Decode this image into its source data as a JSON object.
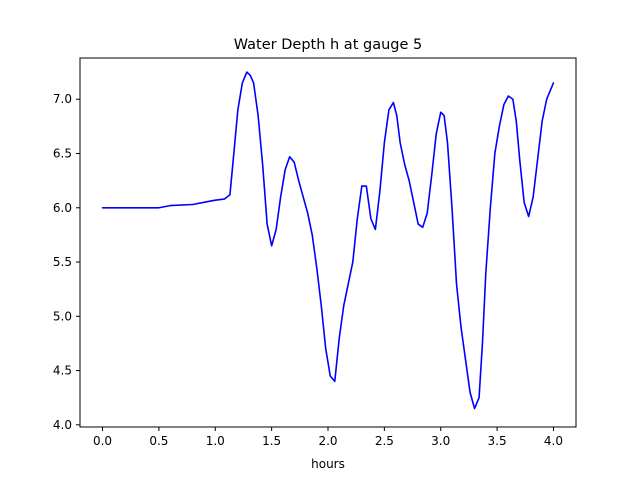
{
  "chart_data": {
    "type": "line",
    "title": "Water Depth h at gauge 5",
    "xlabel": "hours",
    "ylabel": "",
    "xlim": [
      -0.2,
      4.2
    ],
    "ylim": [
      3.98,
      7.38
    ],
    "xticks": [
      0.0,
      0.5,
      1.0,
      1.5,
      2.0,
      2.5,
      3.0,
      3.5,
      4.0
    ],
    "xtick_labels": [
      "0.0",
      "0.5",
      "1.0",
      "1.5",
      "2.0",
      "2.5",
      "3.0",
      "3.5",
      "4.0"
    ],
    "yticks": [
      4.0,
      4.5,
      5.0,
      5.5,
      6.0,
      6.5,
      7.0
    ],
    "ytick_labels": [
      "4.0",
      "4.5",
      "5.0",
      "5.5",
      "6.0",
      "6.5",
      "7.0"
    ],
    "grid": false,
    "legend": "none",
    "series": [
      {
        "color": "#0000ff",
        "x": [
          0.0,
          0.2,
          0.4,
          0.5,
          0.6,
          0.8,
          0.9,
          1.0,
          1.08,
          1.13,
          1.16,
          1.2,
          1.24,
          1.28,
          1.31,
          1.34,
          1.38,
          1.42,
          1.46,
          1.5,
          1.54,
          1.58,
          1.62,
          1.66,
          1.7,
          1.74,
          1.78,
          1.82,
          1.86,
          1.9,
          1.94,
          1.98,
          2.02,
          2.06,
          2.1,
          2.14,
          2.18,
          2.22,
          2.26,
          2.3,
          2.34,
          2.38,
          2.42,
          2.46,
          2.5,
          2.54,
          2.58,
          2.61,
          2.64,
          2.68,
          2.72,
          2.76,
          2.8,
          2.84,
          2.88,
          2.92,
          2.96,
          3.0,
          3.03,
          3.06,
          3.1,
          3.14,
          3.18,
          3.22,
          3.26,
          3.3,
          3.34,
          3.37,
          3.4,
          3.44,
          3.48,
          3.52,
          3.56,
          3.6,
          3.64,
          3.67,
          3.7,
          3.74,
          3.78,
          3.82,
          3.86,
          3.9,
          3.94,
          4.0
        ],
        "y": [
          6.0,
          6.0,
          6.0,
          6.0,
          6.02,
          6.03,
          6.05,
          6.07,
          6.08,
          6.12,
          6.45,
          6.9,
          7.15,
          7.25,
          7.22,
          7.15,
          6.85,
          6.4,
          5.85,
          5.65,
          5.8,
          6.1,
          6.35,
          6.47,
          6.42,
          6.25,
          6.1,
          5.95,
          5.75,
          5.45,
          5.1,
          4.7,
          4.45,
          4.4,
          4.8,
          5.1,
          5.3,
          5.5,
          5.9,
          6.2,
          6.2,
          5.9,
          5.8,
          6.15,
          6.6,
          6.9,
          6.97,
          6.85,
          6.6,
          6.4,
          6.25,
          6.05,
          5.85,
          5.82,
          5.95,
          6.3,
          6.68,
          6.88,
          6.85,
          6.6,
          6.0,
          5.3,
          4.9,
          4.6,
          4.3,
          4.15,
          4.25,
          4.75,
          5.4,
          6.0,
          6.5,
          6.75,
          6.95,
          7.03,
          7.0,
          6.8,
          6.45,
          6.05,
          5.92,
          6.1,
          6.45,
          6.8,
          7.0,
          7.15
        ]
      }
    ]
  }
}
